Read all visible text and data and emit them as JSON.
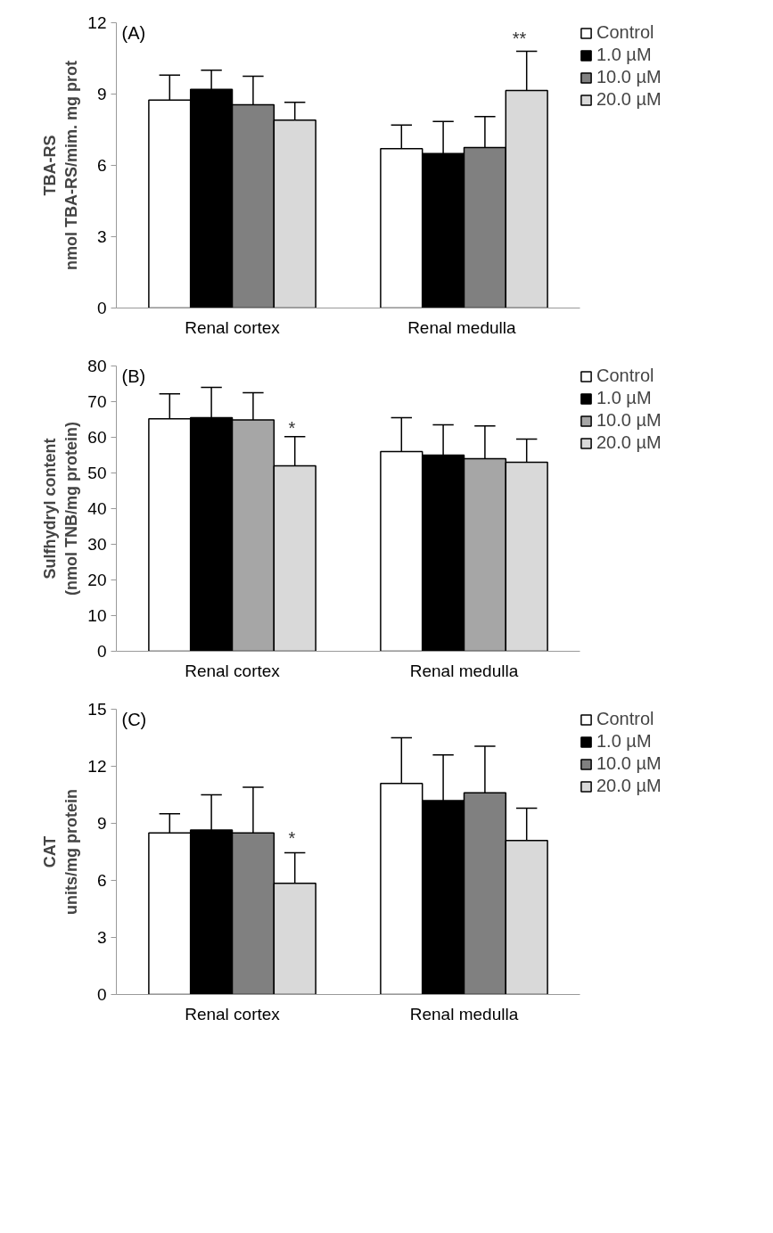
{
  "chart_data": [
    {
      "type": "bar",
      "ylabel": "TBA-RS\nnmol TBA-RS/mim. mg prot",
      "categories": [
        "Renal cortex",
        "Renal  medulla"
      ],
      "ylim": [
        0,
        12
      ],
      "yticks": [
        0,
        3,
        6,
        9,
        12
      ],
      "grid": false,
      "legend": "right",
      "annotations": [
        "(A)",
        "**"
      ],
      "series": [
        {
          "name": "Control",
          "color": "#ffffff",
          "values": [
            8.75,
            6.7
          ],
          "errors": [
            [
              8.75,
              9.8
            ],
            [
              6.7,
              7.7
            ]
          ]
        },
        {
          "name": "1.0 µM",
          "color": "#000000",
          "values": [
            9.2,
            6.5
          ],
          "errors": [
            [
              9.2,
              10.0
            ],
            [
              6.5,
              7.85
            ]
          ]
        },
        {
          "name": "10.0 µM",
          "color": "#808080",
          "values": [
            8.55,
            6.75
          ],
          "errors": [
            [
              8.55,
              9.75
            ],
            [
              6.75,
              8.05
            ]
          ]
        },
        {
          "name": "20.0 µM",
          "color": "#d9d9d9",
          "values": [
            7.9,
            9.15
          ],
          "errors": [
            [
              7.9,
              8.65
            ],
            [
              9.15,
              10.8
            ]
          ]
        }
      ]
    },
    {
      "type": "bar",
      "ylabel": "Sulfhydryl content\n(nmol TNB/mg protein)",
      "categories": [
        "Renal cortex",
        "Renal medulla"
      ],
      "ylim": [
        0,
        80
      ],
      "yticks": [
        0,
        10,
        20,
        30,
        40,
        50,
        60,
        70,
        80
      ],
      "grid": false,
      "legend": "right",
      "annotations": [
        "(B)",
        "*"
      ],
      "series": [
        {
          "name": "Control",
          "color": "#ffffff",
          "values": [
            65.2,
            56
          ],
          "errors": [
            [
              65.2,
              72.2
            ],
            [
              56,
              65.5
            ]
          ]
        },
        {
          "name": "1.0 µM",
          "color": "#000000",
          "values": [
            65.5,
            55
          ],
          "errors": [
            [
              65.5,
              74
            ],
            [
              55,
              63.5
            ]
          ]
        },
        {
          "name": "10.0 µM",
          "color": "#a6a6a6",
          "values": [
            64.9,
            54
          ],
          "errors": [
            [
              64.9,
              72.5
            ],
            [
              54,
              63.2
            ]
          ]
        },
        {
          "name": "20.0 µM",
          "color": "#d9d9d9",
          "values": [
            52,
            53
          ],
          "errors": [
            [
              52,
              60.2
            ],
            [
              53,
              59.5
            ]
          ]
        }
      ]
    },
    {
      "type": "bar",
      "ylabel": "CAT\nunits/mg protein",
      "categories": [
        "Renal cortex",
        "Renal medulla"
      ],
      "ylim": [
        0,
        15
      ],
      "yticks": [
        0,
        3,
        6,
        9,
        12,
        15
      ],
      "grid": false,
      "legend": "right",
      "annotations": [
        "(C)",
        "*"
      ],
      "series": [
        {
          "name": "Control",
          "color": "#ffffff",
          "values": [
            8.5,
            11.1
          ],
          "errors": [
            [
              8.5,
              9.5
            ],
            [
              11.1,
              13.5
            ]
          ]
        },
        {
          "name": "1.0 µM",
          "color": "#000000",
          "values": [
            8.65,
            10.2
          ],
          "errors": [
            [
              8.65,
              10.5
            ],
            [
              10.2,
              12.6
            ]
          ]
        },
        {
          "name": "10.0 µM",
          "color": "#808080",
          "values": [
            8.5,
            10.6
          ],
          "errors": [
            [
              8.5,
              10.9
            ],
            [
              10.6,
              13.05
            ]
          ]
        },
        {
          "name": "20.0 µM",
          "color": "#d9d9d9",
          "values": [
            5.85,
            8.1
          ],
          "errors": [
            [
              5.85,
              7.45
            ],
            [
              8.1,
              9.8
            ]
          ]
        }
      ]
    }
  ]
}
